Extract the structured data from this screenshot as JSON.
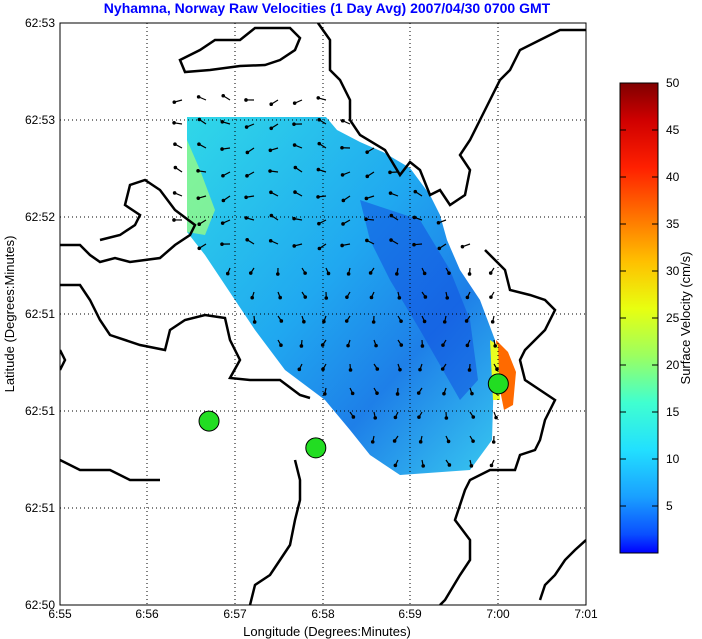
{
  "chart_data": {
    "type": "heatmap",
    "title": "Nyhamna, Norway Raw Velocities (1 Day Avg) 2007/04/30 0700 GMT",
    "xlabel": "Longitude (Degrees:Minutes)",
    "ylabel": "Latitude (Degrees:Minutes)",
    "x_ticks": [
      "6:55",
      "6:56",
      "6:57",
      "6:58",
      "6:59",
      "7:00",
      "7:01"
    ],
    "y_ticks": [
      "62:50",
      "62:51",
      "62:51",
      "62:51",
      "62:52",
      "62:53",
      "62:53"
    ],
    "grid": true,
    "colorbar": {
      "label": "Surface Velocity (cm/s)",
      "ticks": [
        "5",
        "10",
        "15",
        "20",
        "25",
        "30",
        "35",
        "40",
        "45",
        "50"
      ],
      "range": [
        0,
        50
      ]
    },
    "sites": [
      {
        "x": 6.945,
        "y": 62.8491
      },
      {
        "x": 6.9653,
        "y": 62.8468
      },
      {
        "x": 7.0,
        "y": 62.8523
      }
    ]
  }
}
